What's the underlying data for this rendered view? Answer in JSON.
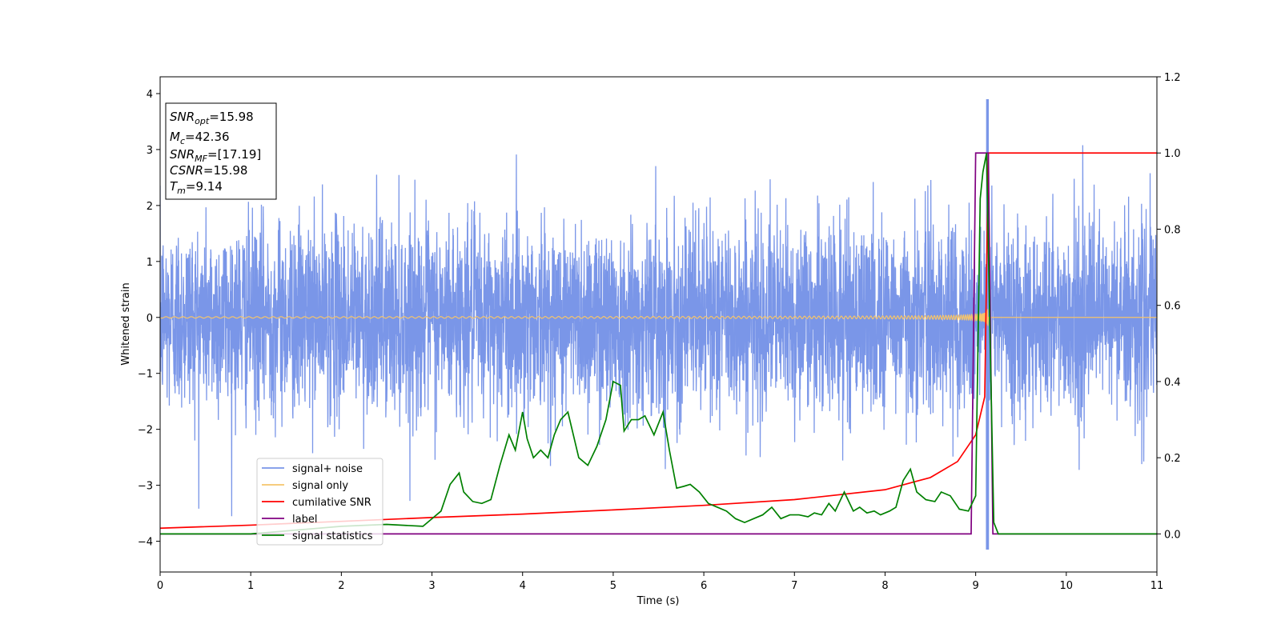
{
  "chart_data": {
    "type": "line",
    "xlabel": "Time (s)",
    "ylabel": "Whitened strain",
    "xlim": [
      0,
      11
    ],
    "ylim_left": [
      -4.55,
      4.3
    ],
    "ylim_right": [
      -0.1,
      1.2
    ],
    "x_ticks": [
      "0",
      "1",
      "2",
      "3",
      "4",
      "5",
      "6",
      "7",
      "8",
      "9",
      "10",
      "11"
    ],
    "y_ticks_left": [
      "−4",
      "−3",
      "−2",
      "−1",
      "0",
      "1",
      "2",
      "3",
      "4"
    ],
    "y_ticks_right": [
      "0.0",
      "0.2",
      "0.4",
      "0.6",
      "0.8",
      "1.0",
      "1.2"
    ],
    "grid": false,
    "legend_position": "lower-left",
    "info_box": {
      "lines": [
        {
          "sym": "SNR",
          "sub": "opt",
          "value": "=15.98"
        },
        {
          "sym": "M",
          "sub": "c",
          "value": "=42.36"
        },
        {
          "sym": "SNR",
          "sub": "MF",
          "value": "=[17.19]"
        },
        {
          "sym": "CSNR",
          "sub": "",
          "value": "=15.98"
        },
        {
          "sym": "T",
          "sub": "m",
          "value": "=9.14"
        }
      ]
    },
    "series": [
      {
        "name": "signal+ noise",
        "color": "#7a96e8",
        "axis": "left",
        "noise_std": 0.85,
        "max_abs_peak": 3.9,
        "peak_time": 9.13
      },
      {
        "name": "signal only",
        "color": "#f5c46b",
        "axis": "left",
        "chirp_end": 9.14
      },
      {
        "name": "cumilative SNR",
        "color": "#ff0000",
        "axis": "right",
        "x": [
          0,
          1,
          2,
          3,
          4,
          5,
          6,
          7,
          8,
          8.5,
          8.8,
          9.0,
          9.1,
          9.14,
          9.2,
          11
        ],
        "y": [
          0.015,
          0.023,
          0.033,
          0.043,
          0.052,
          0.063,
          0.075,
          0.09,
          0.116,
          0.148,
          0.19,
          0.26,
          0.36,
          1.0,
          1.0,
          1.0
        ]
      },
      {
        "name": "label",
        "color": "#800080",
        "axis": "right",
        "x": [
          0,
          8.95,
          9.0,
          9.14,
          9.19,
          11
        ],
        "y": [
          0.0,
          0.0,
          1.0,
          1.0,
          0.0,
          0.0
        ]
      },
      {
        "name": "signal statistics",
        "color": "#008000",
        "axis": "right",
        "x": [
          0,
          1,
          2,
          2.5,
          2.9,
          3.0,
          3.1,
          3.2,
          3.3,
          3.35,
          3.45,
          3.55,
          3.65,
          3.75,
          3.85,
          3.92,
          4.0,
          4.05,
          4.12,
          4.2,
          4.28,
          4.35,
          4.42,
          4.5,
          4.55,
          4.62,
          4.72,
          4.82,
          4.92,
          5.0,
          5.08,
          5.12,
          5.2,
          5.28,
          5.35,
          5.45,
          5.55,
          5.62,
          5.7,
          5.78,
          5.85,
          5.95,
          6.05,
          6.15,
          6.25,
          6.35,
          6.45,
          6.55,
          6.65,
          6.75,
          6.85,
          6.95,
          7.05,
          7.15,
          7.22,
          7.3,
          7.38,
          7.45,
          7.55,
          7.65,
          7.72,
          7.8,
          7.88,
          7.95,
          8.05,
          8.12,
          8.2,
          8.28,
          8.35,
          8.45,
          8.55,
          8.62,
          8.72,
          8.82,
          8.92,
          9.0,
          9.05,
          9.08,
          9.12,
          9.16,
          9.2,
          9.25,
          11
        ],
        "y": [
          0.0,
          0.0,
          0.02,
          0.025,
          0.02,
          0.04,
          0.06,
          0.13,
          0.16,
          0.11,
          0.085,
          0.08,
          0.09,
          0.18,
          0.26,
          0.22,
          0.32,
          0.25,
          0.2,
          0.22,
          0.2,
          0.26,
          0.3,
          0.32,
          0.27,
          0.2,
          0.18,
          0.23,
          0.3,
          0.4,
          0.39,
          0.27,
          0.3,
          0.3,
          0.31,
          0.26,
          0.32,
          0.22,
          0.12,
          0.125,
          0.13,
          0.11,
          0.08,
          0.07,
          0.06,
          0.04,
          0.03,
          0.04,
          0.05,
          0.07,
          0.04,
          0.05,
          0.05,
          0.045,
          0.055,
          0.05,
          0.08,
          0.06,
          0.11,
          0.06,
          0.07,
          0.055,
          0.06,
          0.05,
          0.06,
          0.07,
          0.14,
          0.17,
          0.11,
          0.09,
          0.085,
          0.11,
          0.1,
          0.065,
          0.06,
          0.1,
          0.88,
          0.95,
          1.0,
          0.5,
          0.03,
          0.0,
          0.0
        ]
      }
    ]
  }
}
